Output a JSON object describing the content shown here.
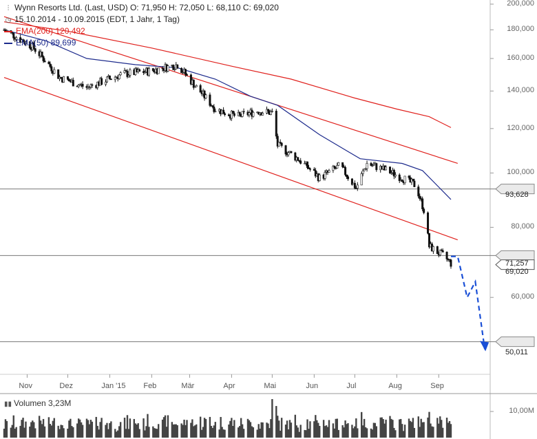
{
  "header": {
    "title_line": "Wynn Resorts Ltd. (Last, USD)  O: 71,950  H: 72,050  L: 68,110  C: 69,020",
    "range_line": "15.10.2014 - 10.09.2015 (EDT, 1 Jahr, 1 Tag)",
    "ema200_label": "EMA(200)  120,492",
    "ema50_label": "EMA(50)  89,699"
  },
  "colors": {
    "ema200": "#e0201c",
    "ema50": "#1c2a8c",
    "channel": "#e0201c",
    "projection": "#1a4fd6",
    "candle": "#111111"
  },
  "price_tags": {
    "level_1": "93,628",
    "level_2": "71,257",
    "last": "69,020",
    "target": "50,011"
  },
  "volume": {
    "label": "Volumen  3,23M",
    "axis_label": "10,00M"
  },
  "chart_data": {
    "type": "line",
    "x_ticks": [
      "Nov",
      "Dez",
      "Jan '15",
      "Feb",
      "Mär",
      "Apr",
      "Mai",
      "Jun",
      "Jul",
      "Aug",
      "Sep"
    ],
    "y_ticks": [
      "200,000",
      "180,000",
      "160,000",
      "140,000",
      "120,000",
      "100,000",
      "80,000",
      "60,000"
    ],
    "y_tick_values": [
      200,
      180,
      160,
      140,
      120,
      100,
      80,
      60
    ],
    "ylim": [
      44,
      200
    ],
    "y_scale": "log",
    "x_range": [
      "2014-10-15",
      "2015-09-10"
    ],
    "price_series": [
      {
        "date": "2014-10-15",
        "value": 180
      },
      {
        "date": "2014-11-05",
        "value": 168
      },
      {
        "date": "2014-11-25",
        "value": 148
      },
      {
        "date": "2014-12-15",
        "value": 142
      },
      {
        "date": "2015-01-10",
        "value": 150
      },
      {
        "date": "2015-01-31",
        "value": 152
      },
      {
        "date": "2015-02-20",
        "value": 156
      },
      {
        "date": "2015-03-05",
        "value": 143
      },
      {
        "date": "2015-03-20",
        "value": 130
      },
      {
        "date": "2015-04-05",
        "value": 126
      },
      {
        "date": "2015-04-20",
        "value": 129
      },
      {
        "date": "2015-05-01",
        "value": 128
      },
      {
        "date": "2015-05-05",
        "value": 112
      },
      {
        "date": "2015-05-20",
        "value": 106
      },
      {
        "date": "2015-06-05",
        "value": 98
      },
      {
        "date": "2015-06-20",
        "value": 103
      },
      {
        "date": "2015-07-02",
        "value": 94
      },
      {
        "date": "2015-07-10",
        "value": 104
      },
      {
        "date": "2015-07-25",
        "value": 101
      },
      {
        "date": "2015-08-05",
        "value": 98
      },
      {
        "date": "2015-08-15",
        "value": 95
      },
      {
        "date": "2015-08-21",
        "value": 86
      },
      {
        "date": "2015-08-25",
        "value": 74
      },
      {
        "date": "2015-09-01",
        "value": 72
      },
      {
        "date": "2015-09-05",
        "value": 71
      },
      {
        "date": "2015-09-10",
        "value": 69.02
      }
    ],
    "series": [
      {
        "name": "EMA(200)",
        "color": "#e0201c",
        "points": [
          {
            "date": "2014-10-15",
            "value": 186
          },
          {
            "date": "2014-12-01",
            "value": 179
          },
          {
            "date": "2015-02-01",
            "value": 167
          },
          {
            "date": "2015-04-01",
            "value": 155
          },
          {
            "date": "2015-05-15",
            "value": 147
          },
          {
            "date": "2015-07-01",
            "value": 136
          },
          {
            "date": "2015-08-01",
            "value": 130
          },
          {
            "date": "2015-08-25",
            "value": 126
          },
          {
            "date": "2015-09-10",
            "value": 120.492
          }
        ]
      },
      {
        "name": "EMA(50)",
        "color": "#1c2a8c",
        "points": [
          {
            "date": "2014-10-15",
            "value": 180
          },
          {
            "date": "2014-11-15",
            "value": 172
          },
          {
            "date": "2014-12-15",
            "value": 160
          },
          {
            "date": "2015-01-20",
            "value": 156
          },
          {
            "date": "2015-02-20",
            "value": 154
          },
          {
            "date": "2015-03-20",
            "value": 147
          },
          {
            "date": "2015-04-15",
            "value": 137
          },
          {
            "date": "2015-05-05",
            "value": 132
          },
          {
            "date": "2015-06-05",
            "value": 117
          },
          {
            "date": "2015-07-05",
            "value": 106
          },
          {
            "date": "2015-08-05",
            "value": 104
          },
          {
            "date": "2015-08-20",
            "value": 101
          },
          {
            "date": "2015-09-10",
            "value": 89.699
          }
        ]
      }
    ],
    "channel_lines": [
      {
        "from": {
          "date": "2014-10-15",
          "value": 190
        },
        "to": {
          "date": "2015-09-15",
          "value": 104
        }
      },
      {
        "from": {
          "date": "2014-10-15",
          "value": 148
        },
        "to": {
          "date": "2015-09-15",
          "value": 76
        }
      }
    ],
    "horizontal_levels": [
      93.628,
      71.257,
      50.011
    ],
    "projection": [
      {
        "date": "2015-09-10",
        "value": 71
      },
      {
        "date": "2015-09-15",
        "value": 71
      },
      {
        "date": "2015-09-22",
        "value": 60
      },
      {
        "date": "2015-09-28",
        "value": 64
      },
      {
        "date": "2015-10-05",
        "value": 48.5
      }
    ],
    "legend": "top-left",
    "grid": false
  }
}
